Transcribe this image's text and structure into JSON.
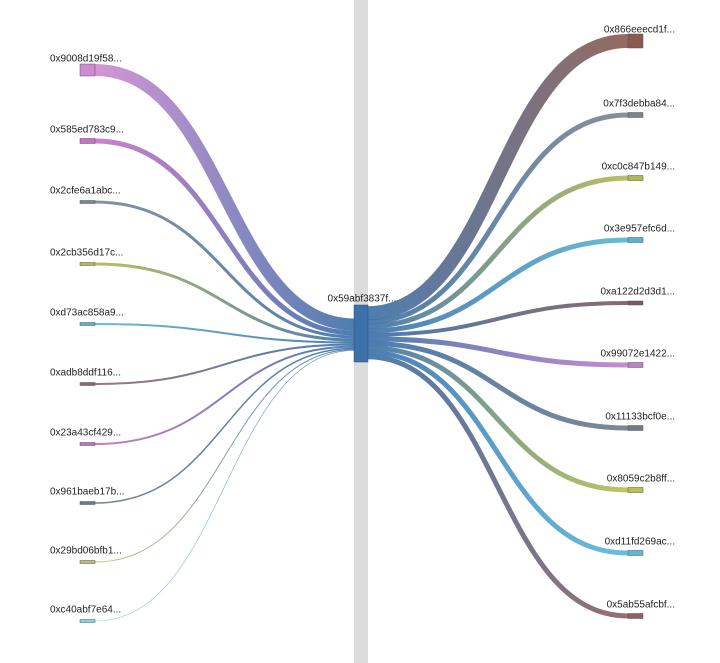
{
  "center": {
    "label": "0x59abf3837f...",
    "color": "#3b70a8"
  },
  "left_nodes": [
    {
      "label": "0x9008d19f58...",
      "color": "#d08ad0"
    },
    {
      "label": "0x585ed783c9...",
      "color": "#c672c6"
    },
    {
      "label": "0x2cfe6a1abc...",
      "color": "#7a8590"
    },
    {
      "label": "0x2cb356d17c...",
      "color": "#b3b852"
    },
    {
      "label": "0xd73ac858a9...",
      "color": "#5ab4d0"
    },
    {
      "label": "0xadb8ddf116...",
      "color": "#8a6a70"
    },
    {
      "label": "0x23a43cf429...",
      "color": "#c070c0"
    },
    {
      "label": "0x961baeb17b...",
      "color": "#707888"
    },
    {
      "label": "0x29bd06bfb1...",
      "color": "#b8c070"
    },
    {
      "label": "0xc40abf7e64...",
      "color": "#8ad0e0"
    }
  ],
  "right_nodes": [
    {
      "label": "0x866eeecd1f...",
      "color": "#8a5a50"
    },
    {
      "label": "0x7f3debba84...",
      "color": "#7a8590"
    },
    {
      "label": "0xc0c847b149...",
      "color": "#b3b852"
    },
    {
      "label": "0x3e957efc6d...",
      "color": "#5ab4d0"
    },
    {
      "label": "0xa122d2d3d1...",
      "color": "#7a5a60"
    },
    {
      "label": "0x99072e1422...",
      "color": "#c080c8"
    },
    {
      "label": "0x11133bcf0e...",
      "color": "#707a88"
    },
    {
      "label": "0x8059c2b8ff...",
      "color": "#b8c050"
    },
    {
      "label": "0xd11fd269ac...",
      "color": "#5ab8d8"
    },
    {
      "label": "0x5ab55afcbf...",
      "color": "#8a6060"
    }
  ]
}
